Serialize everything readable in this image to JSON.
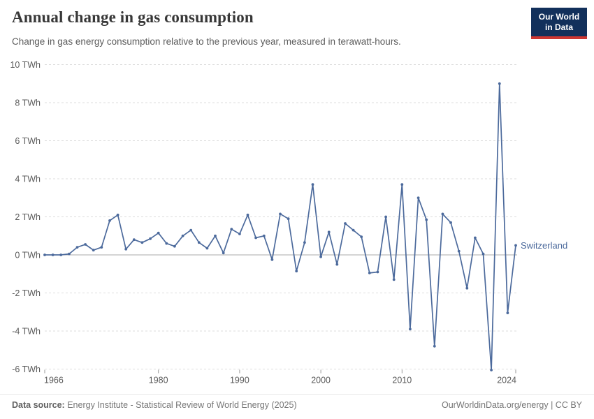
{
  "header": {
    "title": "Annual change in gas consumption",
    "subtitle": "Change in gas energy consumption relative to the previous year, measured in terawatt-hours.",
    "logo": {
      "line1": "Our World",
      "line2": "in Data",
      "bg_color": "#12305b",
      "accent_color": "#cd3732"
    }
  },
  "chart_data": {
    "type": "line",
    "title": "Annual change in gas consumption",
    "subtitle": "Change in gas energy consumption relative to the previous year, measured in terawatt-hours.",
    "unit": "TWh",
    "entity_label": "Switzerland",
    "line_color": "#4c6a9c",
    "grid": true,
    "gridline_color": "#dcdcdc",
    "zero_line_color": "#a8a8a8",
    "tick_label_color": "#5b5b5b",
    "xlim": [
      1966,
      2024
    ],
    "ylim": [
      -6,
      10
    ],
    "y_ticks": [
      {
        "value": 10,
        "label": "10 TWh"
      },
      {
        "value": 8,
        "label": "8 TWh"
      },
      {
        "value": 6,
        "label": "6 TWh"
      },
      {
        "value": 4,
        "label": "4 TWh"
      },
      {
        "value": 2,
        "label": "2 TWh"
      },
      {
        "value": 0,
        "label": "0 TWh"
      },
      {
        "value": -2,
        "label": "-2 TWh"
      },
      {
        "value": -4,
        "label": "-4 TWh"
      },
      {
        "value": -6,
        "label": "-6 TWh"
      }
    ],
    "x_ticks": [
      {
        "year": 1966,
        "label": "1966"
      },
      {
        "year": 1980,
        "label": "1980"
      },
      {
        "year": 1990,
        "label": "1990"
      },
      {
        "year": 2000,
        "label": "2000"
      },
      {
        "year": 2010,
        "label": "2010"
      },
      {
        "year": 2024,
        "label": "2024"
      }
    ],
    "series": [
      {
        "name": "Switzerland",
        "start_year": 1966,
        "end_year": 2024,
        "values": [
          0,
          0,
          0,
          0.05,
          0.4,
          0.55,
          0.25,
          0.4,
          1.8,
          2.1,
          0.3,
          0.8,
          0.65,
          0.85,
          1.15,
          0.6,
          0.45,
          1.0,
          1.3,
          0.65,
          0.35,
          1.0,
          0.1,
          1.35,
          1.1,
          2.1,
          0.9,
          1.0,
          -0.25,
          2.15,
          1.9,
          -0.85,
          0.65,
          3.7,
          -0.1,
          1.2,
          -0.5,
          1.65,
          1.3,
          0.95,
          -0.95,
          -0.9,
          2.0,
          -1.3,
          3.7,
          -3.9,
          3.0,
          1.85,
          -4.8,
          2.15,
          1.7,
          0.2,
          -1.75,
          0.9,
          0.05,
          -6.05,
          9.0,
          -3.05,
          0.5
        ]
      }
    ]
  },
  "footer": {
    "source_label": "Data source:",
    "source_text": "Energy Institute - Statistical Review of World Energy (2025)",
    "right_text": "OurWorldinData.org/energy | CC BY"
  }
}
